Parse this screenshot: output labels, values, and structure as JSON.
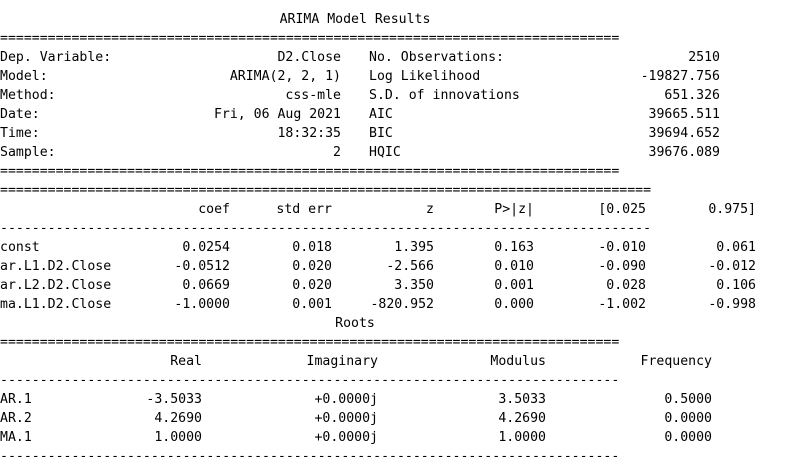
{
  "title": "ARIMA Model Results",
  "summary": {
    "left": [
      {
        "label": "Dep. Variable:",
        "value": "D2.Close"
      },
      {
        "label": "Model:",
        "value": "ARIMA(2, 2, 1)"
      },
      {
        "label": "Method:",
        "value": "css-mle"
      },
      {
        "label": "Date:",
        "value": "Fri, 06 Aug 2021"
      },
      {
        "label": "Time:",
        "value": "18:32:35"
      },
      {
        "label": "Sample:",
        "value": "2"
      }
    ],
    "right": [
      {
        "label": "No. Observations:",
        "value": "2510"
      },
      {
        "label": "Log Likelihood",
        "value": "-19827.756"
      },
      {
        "label": "S.D. of innovations",
        "value": "651.326"
      },
      {
        "label": "AIC",
        "value": "39665.511"
      },
      {
        "label": "BIC",
        "value": "39694.652"
      },
      {
        "label": "HQIC",
        "value": "39676.089"
      }
    ]
  },
  "coef_table": {
    "headers": [
      "coef",
      "std err",
      "z",
      "P>|z|",
      "[0.025",
      "0.975]"
    ],
    "rows": [
      {
        "name": "const",
        "values": [
          "0.0254",
          "0.018",
          "1.395",
          "0.163",
          "-0.010",
          "0.061"
        ]
      },
      {
        "name": "ar.L1.D2.Close",
        "values": [
          "-0.0512",
          "0.020",
          "-2.566",
          "0.010",
          "-0.090",
          "-0.012"
        ]
      },
      {
        "name": "ar.L2.D2.Close",
        "values": [
          "0.0669",
          "0.020",
          "3.350",
          "0.001",
          "0.028",
          "0.106"
        ]
      },
      {
        "name": "ma.L1.D2.Close",
        "values": [
          "-1.0000",
          "0.001",
          "-820.952",
          "0.000",
          "-1.002",
          "-0.998"
        ]
      }
    ]
  },
  "roots_title": "Roots",
  "roots_table": {
    "headers": [
      "Real",
      "Imaginary",
      "Modulus",
      "Frequency"
    ],
    "rows": [
      {
        "name": "AR.1",
        "values": [
          "-3.5033",
          "+0.0000j",
          "3.5033",
          "0.5000"
        ]
      },
      {
        "name": "AR.2",
        "values": [
          "4.2690",
          "+0.0000j",
          "4.2690",
          "0.0000"
        ]
      },
      {
        "name": "MA.1",
        "values": [
          "1.0000",
          "+0.0000j",
          "1.0000",
          "0.0000"
        ]
      }
    ]
  }
}
